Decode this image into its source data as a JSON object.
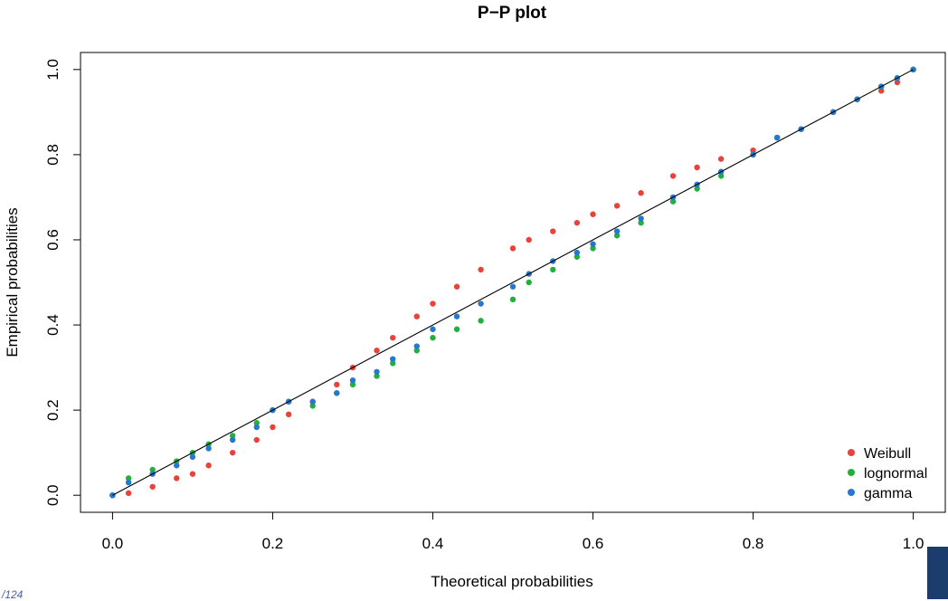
{
  "colors": {
    "Weibull": "#e8433a",
    "lognormal": "#22b03c",
    "gamma": "#2577d0",
    "reference_line": "#000000"
  },
  "chart_data": {
    "type": "scatter",
    "title": "P−P plot",
    "xlabel": "Theoretical probabilities",
    "ylabel": "Empirical probabilities",
    "xlim": [
      -0.04,
      1.04
    ],
    "ylim": [
      -0.04,
      1.04
    ],
    "x_ticks": [
      0.0,
      0.2,
      0.4,
      0.6,
      0.8,
      1.0
    ],
    "x_tick_labels": [
      "0.0",
      "0.2",
      "0.4",
      "0.6",
      "0.8",
      "1.0"
    ],
    "y_ticks": [
      0.0,
      0.2,
      0.4,
      0.6,
      0.8,
      1.0
    ],
    "y_tick_labels": [
      "0.0",
      "0.2",
      "0.4",
      "0.6",
      "0.8",
      "1.0"
    ],
    "grid": false,
    "legend_position": "bottom-right",
    "reference_line": {
      "from": [
        0,
        0
      ],
      "to": [
        1,
        1
      ]
    },
    "series": [
      {
        "name": "Weibull",
        "x": [
          0.0,
          0.02,
          0.05,
          0.08,
          0.1,
          0.12,
          0.15,
          0.18,
          0.2,
          0.22,
          0.25,
          0.28,
          0.3,
          0.33,
          0.35,
          0.38,
          0.4,
          0.43,
          0.46,
          0.5,
          0.52,
          0.55,
          0.58,
          0.6,
          0.63,
          0.66,
          0.7,
          0.73,
          0.76,
          0.8,
          0.83,
          0.86,
          0.9,
          0.93,
          0.96,
          0.98,
          1.0
        ],
        "y": [
          0.0,
          0.005,
          0.02,
          0.04,
          0.05,
          0.07,
          0.1,
          0.13,
          0.16,
          0.19,
          0.22,
          0.26,
          0.3,
          0.34,
          0.37,
          0.42,
          0.45,
          0.49,
          0.53,
          0.58,
          0.6,
          0.62,
          0.64,
          0.66,
          0.68,
          0.71,
          0.75,
          0.77,
          0.79,
          0.81,
          0.84,
          0.86,
          0.9,
          0.93,
          0.95,
          0.97,
          1.0
        ]
      },
      {
        "name": "lognormal",
        "x": [
          0.0,
          0.02,
          0.05,
          0.08,
          0.1,
          0.12,
          0.15,
          0.18,
          0.2,
          0.22,
          0.25,
          0.28,
          0.3,
          0.33,
          0.35,
          0.38,
          0.4,
          0.43,
          0.46,
          0.5,
          0.52,
          0.55,
          0.58,
          0.6,
          0.63,
          0.66,
          0.7,
          0.73,
          0.76,
          0.8,
          0.83,
          0.86,
          0.9,
          0.93,
          0.96,
          0.98,
          1.0
        ],
        "y": [
          0.0,
          0.04,
          0.06,
          0.08,
          0.1,
          0.12,
          0.14,
          0.17,
          0.2,
          0.22,
          0.21,
          0.24,
          0.26,
          0.28,
          0.31,
          0.34,
          0.37,
          0.39,
          0.41,
          0.46,
          0.5,
          0.53,
          0.56,
          0.58,
          0.61,
          0.64,
          0.69,
          0.72,
          0.75,
          0.8,
          0.84,
          0.86,
          0.9,
          0.93,
          0.96,
          0.98,
          1.0
        ]
      },
      {
        "name": "gamma",
        "x": [
          0.0,
          0.02,
          0.05,
          0.08,
          0.1,
          0.12,
          0.15,
          0.18,
          0.2,
          0.22,
          0.25,
          0.28,
          0.3,
          0.33,
          0.35,
          0.38,
          0.4,
          0.43,
          0.46,
          0.5,
          0.52,
          0.55,
          0.58,
          0.6,
          0.63,
          0.66,
          0.7,
          0.73,
          0.76,
          0.8,
          0.83,
          0.86,
          0.9,
          0.93,
          0.96,
          0.98,
          1.0
        ],
        "y": [
          0.0,
          0.03,
          0.05,
          0.07,
          0.09,
          0.11,
          0.13,
          0.16,
          0.2,
          0.22,
          0.22,
          0.24,
          0.27,
          0.29,
          0.32,
          0.35,
          0.39,
          0.42,
          0.45,
          0.49,
          0.52,
          0.55,
          0.57,
          0.59,
          0.62,
          0.65,
          0.7,
          0.73,
          0.76,
          0.8,
          0.84,
          0.86,
          0.9,
          0.93,
          0.96,
          0.98,
          1.0
        ]
      }
    ]
  },
  "page_number": "/124"
}
